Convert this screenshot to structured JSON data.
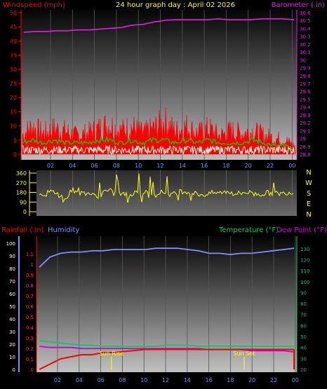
{
  "header": {
    "left": "Windspeed (mph)",
    "center": "24 hour graph day : April 02 2026",
    "right": "Barometer (.in)"
  },
  "colors": {
    "wind": "#ff0000",
    "baro": "#e020e0",
    "gust_green": "#00cc00",
    "white_series": "#e8ffe8",
    "direction": "#ffff00",
    "humidity": "#8a8aff",
    "temperature": "#00cc66",
    "dewpoint": "#cc00cc",
    "rain": "#ff0000",
    "sun": "#ffff00"
  },
  "chart_data": [
    {
      "type": "line",
      "name": "wind-barometer",
      "xlabel": "",
      "x_ticks": [
        "02",
        "04",
        "06",
        "08",
        "10",
        "12",
        "14",
        "16",
        "18",
        "20",
        "22",
        "00"
      ],
      "left_axis": {
        "label": "Windspeed (mph)",
        "ticks": [
          0,
          5,
          10,
          15,
          20,
          25,
          30,
          35,
          40,
          45,
          50
        ],
        "ylim": [
          0,
          50
        ]
      },
      "right_axis": {
        "label": "Barometer (.in)",
        "ticks": [
          "28.8",
          "28.9",
          "29",
          "29.1",
          "29.2",
          "29.3",
          "29.4",
          "29.5",
          "29.6",
          "29.7",
          "29.8",
          "29.9",
          "30",
          "30.1",
          "30.2",
          "30.3",
          "30.4",
          "30.5",
          "30.6"
        ],
        "ylim": [
          28.8,
          30.6
        ]
      },
      "series": [
        {
          "name": "Barometer",
          "axis": "right",
          "values": [
            30.35,
            30.36,
            30.36,
            30.37,
            30.37,
            30.38,
            30.38,
            30.39,
            30.4,
            30.41,
            30.44,
            30.45,
            30.48,
            30.5,
            30.51,
            30.51,
            30.51,
            30.51,
            30.52,
            30.51,
            30.51,
            30.51,
            30.52,
            30.52,
            30.52,
            30.51
          ]
        },
        {
          "name": "Windspeed",
          "axis": "left",
          "values": [
            8,
            12,
            9,
            11,
            10,
            8,
            9,
            11,
            13,
            10,
            12,
            9,
            11,
            14,
            10,
            12,
            9,
            11,
            8,
            10,
            9,
            10,
            8,
            7,
            6,
            3
          ]
        },
        {
          "name": "Windspeed (avg)",
          "axis": "left",
          "values": [
            4,
            5,
            4,
            5,
            4,
            4,
            4,
            5,
            5,
            4,
            5,
            4,
            5,
            5,
            4,
            5,
            4,
            5,
            4,
            4,
            4,
            5,
            4,
            3,
            3,
            1
          ]
        }
      ]
    },
    {
      "type": "scatter",
      "name": "wind-direction",
      "left_axis": {
        "ticks": [
          0,
          90,
          180,
          270,
          360
        ],
        "ylim": [
          0,
          360
        ]
      },
      "right_labels": [
        "N",
        "W",
        "S",
        "E",
        "N"
      ],
      "x_ticks": [
        "02",
        "04",
        "06",
        "08",
        "10",
        "12",
        "14",
        "16",
        "18",
        "20",
        "22",
        "00"
      ],
      "values": [
        165,
        180,
        140,
        200,
        175,
        150,
        190,
        170,
        160,
        185,
        175,
        180,
        165,
        190,
        170,
        160,
        175,
        185,
        170,
        180,
        165,
        175,
        170,
        180,
        175
      ]
    },
    {
      "type": "line",
      "name": "rain-humidity-temp",
      "header_left": [
        "Rainfall (.in)",
        "Humidity"
      ],
      "header_right": [
        "Temperature (°F)",
        "Dew Point (°F)"
      ],
      "left_axis_rain": {
        "ticks": [
          "0",
          "0.1",
          "0.2",
          "0.3",
          "0.4",
          "0.5",
          "0.6",
          "0.7",
          "0.8",
          "0.9",
          "1",
          "1.1"
        ],
        "ylim": [
          0,
          1.2
        ]
      },
      "left_axis_hum": {
        "ticks": [
          0,
          10,
          20,
          30,
          40,
          50,
          60,
          70,
          80,
          90,
          100
        ],
        "ylim": [
          0,
          100
        ]
      },
      "right_axis": {
        "ticks": [
          20,
          30,
          40,
          50,
          60,
          70,
          80,
          90,
          100,
          110,
          120,
          130
        ],
        "ylim": [
          20,
          135
        ]
      },
      "x_ticks": [
        "02",
        "04",
        "06",
        "08",
        "10",
        "12",
        "14",
        "16",
        "18",
        "20",
        "22",
        "00"
      ],
      "annotations": [
        {
          "text": "Sun Rise",
          "x": 6.8
        },
        {
          "text": "Sun Set",
          "x": 19.3
        }
      ],
      "series": [
        {
          "name": "Humidity",
          "values": [
            81,
            89,
            92,
            93,
            93,
            94,
            94,
            95,
            95,
            95,
            95,
            96,
            96,
            96,
            95,
            94,
            92,
            92,
            91,
            92,
            92,
            93,
            94,
            95,
            96
          ]
        },
        {
          "name": "Temperature",
          "values": [
            46,
            45,
            44,
            43,
            42,
            42,
            41,
            41,
            41,
            41,
            41,
            41,
            42,
            42,
            42,
            41,
            41,
            41,
            41,
            41,
            41,
            41,
            41,
            41,
            41
          ]
        },
        {
          "name": "Dew Point",
          "values": [
            41,
            40,
            40,
            40,
            39,
            39,
            39,
            39,
            39,
            39,
            39,
            39,
            39,
            39,
            39,
            39,
            38,
            38,
            38,
            38,
            37,
            37,
            37,
            37,
            36
          ]
        },
        {
          "name": "Rainfall",
          "values": [
            0,
            0.05,
            0.1,
            0.12,
            0.14,
            0.14,
            0.16,
            0.16,
            0.17,
            0.18,
            0.19,
            0.19,
            0.19,
            0.19,
            0.19,
            0.19,
            0.19,
            0.19,
            0.19,
            0.19,
            0.19,
            0.19,
            0.19,
            0.19,
            0.19
          ]
        }
      ]
    }
  ]
}
